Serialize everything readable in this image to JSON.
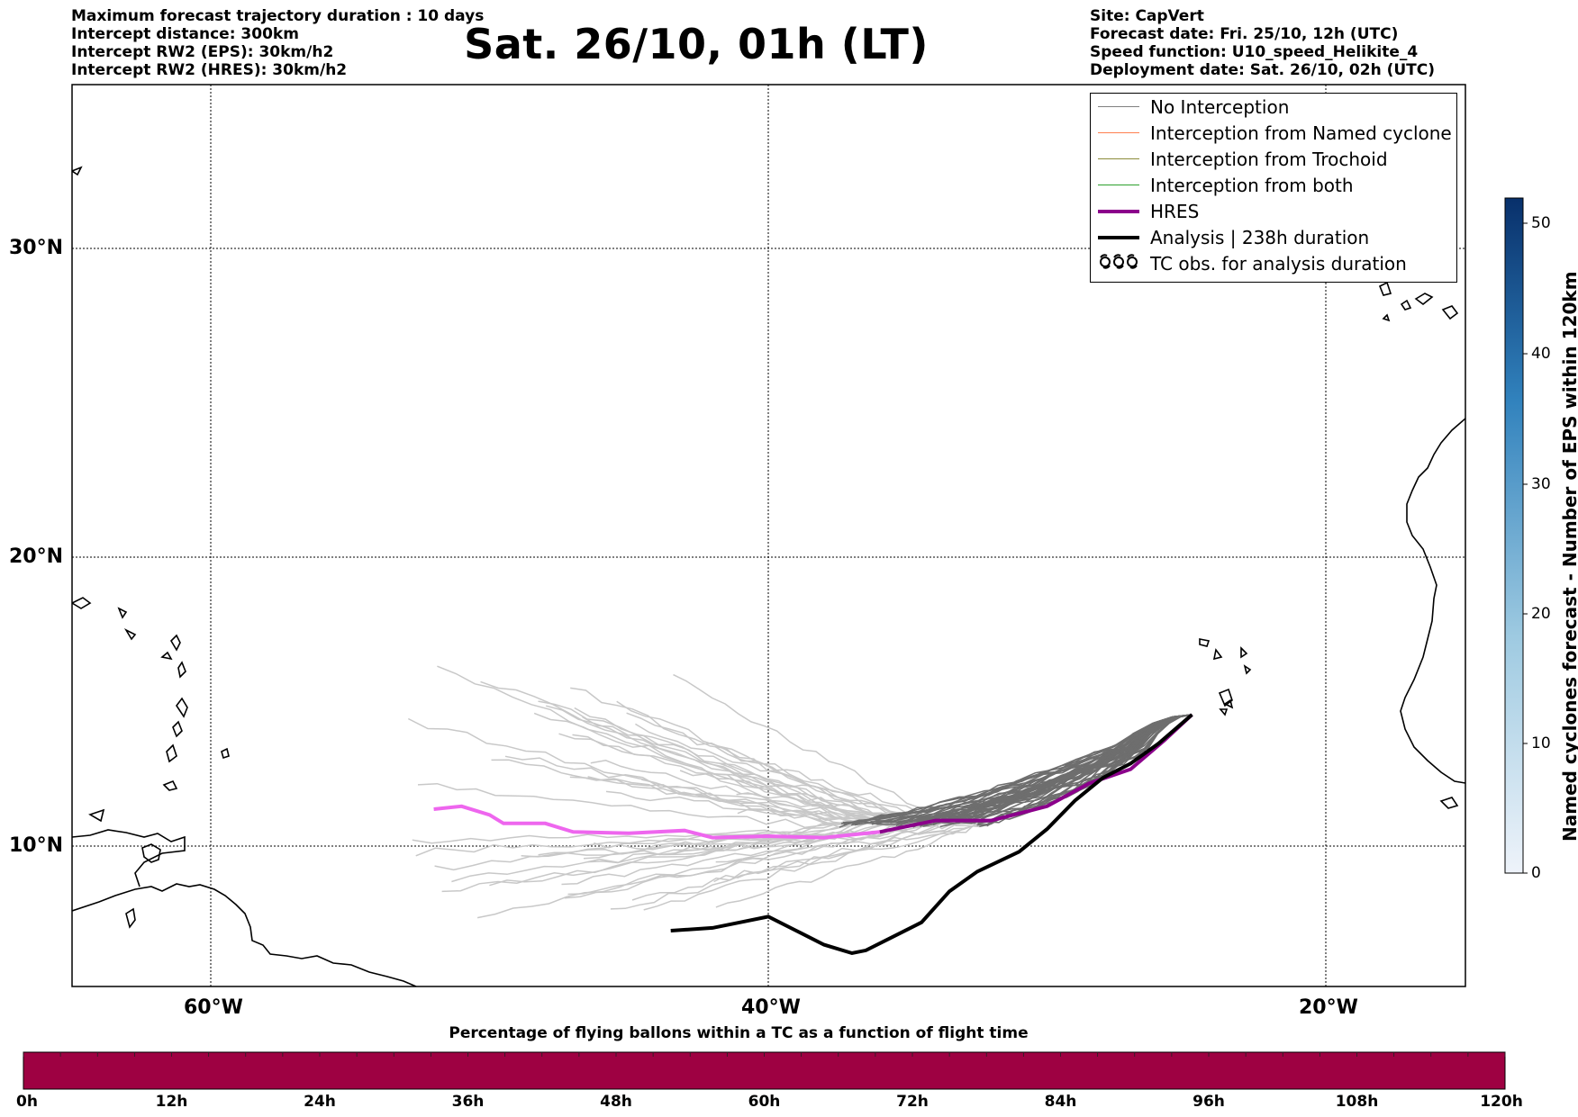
{
  "header_left": [
    "Maximum forecast trajectory duration : 10 days",
    "Intercept distance: 300km",
    "Intercept RW2 (EPS):  30km/h2",
    "Intercept RW2 (HRES): 30km/h2"
  ],
  "header_right": [
    "Site: CapVert",
    "Forecast date: Fri. 25/10, 12h (UTC)",
    "Speed function: U10_speed_Helikite_4",
    "Deployment date: Sat. 26/10, 02h (UTC)"
  ],
  "title": "Sat. 26/10, 01h (LT)",
  "map": {
    "lat_ticks": [
      "30°N",
      "20°N",
      "10°N"
    ],
    "lon_ticks": [
      "60°W",
      "40°W",
      "20°W"
    ],
    "lon_range": [
      -65,
      -15
    ],
    "lat_range": [
      5.4,
      34.6
    ]
  },
  "legend": {
    "items": [
      {
        "label": "No Interception",
        "color": "#808080"
      },
      {
        "label": "Interception from Named cyclone",
        "color": "#ff7f50"
      },
      {
        "label": "Interception from Trochoid",
        "color": "#8b8b3a"
      },
      {
        "label": "Interception from both",
        "color": "#2ca02c"
      },
      {
        "label": "HRES",
        "color": "#8b008b"
      },
      {
        "label": "Analysis | 238h duration",
        "color": "#000000"
      },
      {
        "label": "TC obs. for analysis duration",
        "symbol": "ℭℭℭ"
      }
    ]
  },
  "colorbar_right": {
    "label": "Named cyclones forecast - Number of EPS within 120km",
    "ticks": [
      "0",
      "10",
      "20",
      "30",
      "40",
      "50"
    ],
    "range": [
      0,
      52
    ],
    "color_low": "#e6eef8",
    "color_high": "#08306b"
  },
  "colorbar_bottom": {
    "title": "Percentage of flying ballons within a TC as a function of flight time",
    "ticks": [
      "0h",
      "12h",
      "24h",
      "36h",
      "48h",
      "60h",
      "72h",
      "84h",
      "96h",
      "108h",
      "120h"
    ],
    "color": "#9e0142"
  },
  "chart_data": {
    "type": "trajectory-map",
    "hres_track": [
      [
        -52,
        11.3
      ],
      [
        -51,
        11.4
      ],
      [
        -50,
        11.1
      ],
      [
        -49.5,
        10.8
      ],
      [
        -48,
        10.8
      ],
      [
        -47,
        10.5
      ],
      [
        -45,
        10.45
      ],
      [
        -43,
        10.55
      ],
      [
        -42,
        10.3
      ],
      [
        -40,
        10.35
      ],
      [
        -38,
        10.3
      ],
      [
        -36,
        10.5
      ],
      [
        -34,
        10.9
      ],
      [
        -32,
        10.9
      ],
      [
        -30,
        11.4
      ],
      [
        -28.5,
        12.2
      ],
      [
        -27,
        12.7
      ],
      [
        -25.8,
        13.7
      ],
      [
        -24.8,
        14.6
      ]
    ],
    "analysis_track": [
      [
        -43.5,
        7.0
      ],
      [
        -42,
        7.1
      ],
      [
        -41,
        7.3
      ],
      [
        -40,
        7.5
      ],
      [
        -39,
        7.0
      ],
      [
        -38,
        6.5
      ],
      [
        -37,
        6.2
      ],
      [
        -36.5,
        6.3
      ],
      [
        -35.5,
        6.8
      ],
      [
        -34.5,
        7.3
      ],
      [
        -33.5,
        8.4
      ],
      [
        -32.5,
        9.1
      ],
      [
        -31,
        9.8
      ],
      [
        -30,
        10.6
      ],
      [
        -29,
        11.6
      ],
      [
        -28,
        12.4
      ],
      [
        -27,
        12.9
      ],
      [
        -26,
        13.6
      ],
      [
        -24.8,
        14.6
      ]
    ],
    "origin": [
      -24.8,
      14.6
    ]
  }
}
